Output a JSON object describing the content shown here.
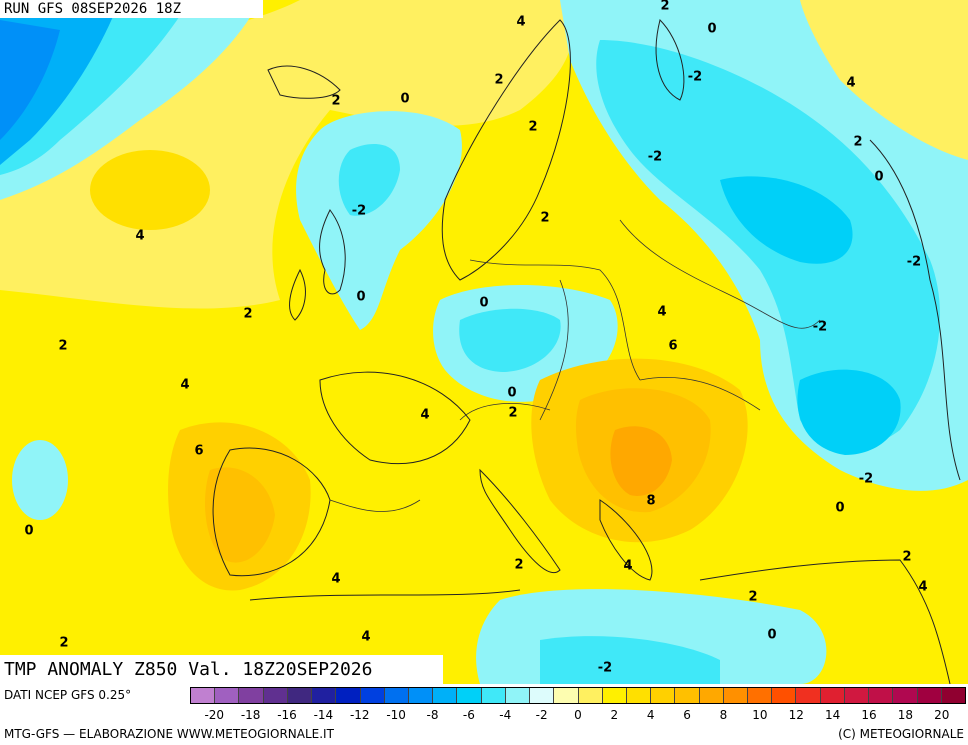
{
  "header": {
    "run_label": "RUN GFS 08SEP2026 18Z"
  },
  "map": {
    "title": "TMP ANOMALY Z850 Val. 18Z20SEP2026",
    "contour_labels": [
      {
        "text": "4"
      },
      {
        "text": "2"
      },
      {
        "text": "0"
      },
      {
        "text": "2"
      },
      {
        "text": "0"
      },
      {
        "text": "2"
      },
      {
        "text": "-2"
      },
      {
        "text": "4"
      },
      {
        "text": "2"
      },
      {
        "text": "-2"
      },
      {
        "text": "0"
      },
      {
        "text": "4"
      },
      {
        "text": "-2"
      },
      {
        "text": "2"
      },
      {
        "text": "0"
      },
      {
        "text": "2"
      },
      {
        "text": "0"
      },
      {
        "text": "-2"
      },
      {
        "text": "2"
      },
      {
        "text": "4"
      },
      {
        "text": "-2"
      },
      {
        "text": "6"
      },
      {
        "text": "0"
      },
      {
        "text": "4"
      },
      {
        "text": "4"
      },
      {
        "text": "2"
      },
      {
        "text": "6"
      },
      {
        "text": "-2"
      },
      {
        "text": "8"
      },
      {
        "text": "0"
      },
      {
        "text": "0"
      },
      {
        "text": "2"
      },
      {
        "text": "4"
      },
      {
        "text": "4"
      },
      {
        "text": "2"
      },
      {
        "text": "2"
      },
      {
        "text": "4"
      },
      {
        "text": "4"
      },
      {
        "text": "2"
      },
      {
        "text": "0"
      },
      {
        "text": "-2"
      },
      {
        "text": "2"
      }
    ]
  },
  "legend": {
    "data_source": "DATI NCEP GFS 0.25°",
    "tick_labels": [
      "-20",
      "-18",
      "-16",
      "-14",
      "-12",
      "-10",
      "-8",
      "-6",
      "-4",
      "-2",
      "0",
      "2",
      "4",
      "6",
      "8",
      "10",
      "12",
      "14",
      "16",
      "18",
      "20"
    ],
    "colors": [
      "#c080d0",
      "#a060c0",
      "#8040a0",
      "#603090",
      "#402880",
      "#2020a0",
      "#0020c0",
      "#0040e0",
      "#0070f0",
      "#0090f8",
      "#00b0f8",
      "#00d0f8",
      "#40e8f8",
      "#90f4f8",
      "#ddfcfc",
      "#fdfdb0",
      "#fff060",
      "#fff000",
      "#ffe000",
      "#ffd000",
      "#ffc000",
      "#ffa800",
      "#ff9000",
      "#ff7000",
      "#ff5000",
      "#f03020",
      "#e02030",
      "#d01840",
      "#c01048",
      "#b00850",
      "#a00040",
      "#900030"
    ],
    "credit_left": "MTG-GFS — ELABORAZIONE WWW.METEOGIORNALE.IT",
    "credit_right": "(C) METEOGIORNALE"
  }
}
